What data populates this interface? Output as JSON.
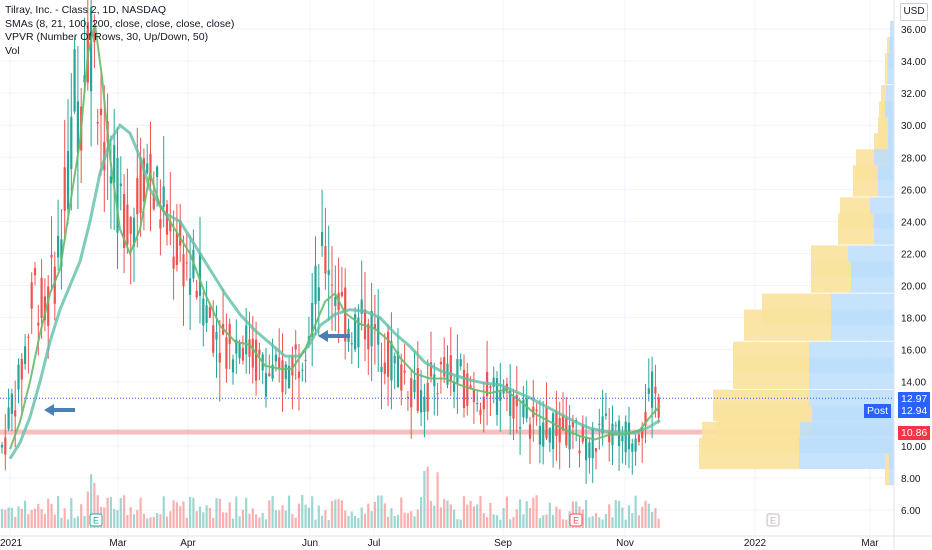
{
  "legend": {
    "title": "Tilray, Inc. - Class 2, 1D, NASDAQ",
    "sma": "SMAs (8, 21, 100, 200, close, close, close, close)",
    "vpvr": "VPVR (Number Of Rows, 30, Up/Down, 50)",
    "vol": "Vol"
  },
  "currency": "USD",
  "price_tags": {
    "last": "12.97",
    "post_label": "Post",
    "post": "12.94",
    "support": "10.86"
  },
  "colors": {
    "up": "#26a69a",
    "down": "#ef5350",
    "sma_fast": "#66bb6a",
    "sma_slow": "#5fbfa8",
    "vp_up": "#f9e29c",
    "vp_down": "#bbdefb",
    "support_line": "#f28b8b",
    "arrow": "#4a7fb5"
  },
  "chart_data": {
    "type": "candlestick",
    "y_ticks": [
      "36.00",
      "34.00",
      "32.00",
      "30.00",
      "28.00",
      "26.00",
      "24.00",
      "22.00",
      "20.00",
      "18.00",
      "16.00",
      "14.00",
      "10.00",
      "8.00",
      "6.00"
    ],
    "x_ticks": [
      "2021",
      "Mar",
      "Apr",
      "Jun",
      "Jul",
      "Sep",
      "Nov",
      "2022",
      "Mar"
    ],
    "ylim": [
      5,
      37
    ],
    "events": [
      "E",
      "E",
      "E"
    ],
    "price_path": [
      [
        0,
        9.6
      ],
      [
        5,
        10.4
      ],
      [
        12,
        12.8
      ],
      [
        18,
        13.5
      ],
      [
        25,
        16
      ],
      [
        30,
        18
      ],
      [
        35,
        20
      ],
      [
        45,
        18
      ],
      [
        55,
        21
      ],
      [
        65,
        25
      ],
      [
        70,
        28
      ],
      [
        75,
        33
      ],
      [
        80,
        30
      ],
      [
        85,
        35
      ],
      [
        90,
        36
      ],
      [
        95,
        34
      ],
      [
        100,
        32
      ],
      [
        105,
        29
      ],
      [
        110,
        27
      ],
      [
        120,
        25
      ],
      [
        130,
        24
      ],
      [
        140,
        26
      ],
      [
        145,
        28
      ],
      [
        150,
        27
      ],
      [
        155,
        26
      ],
      [
        160,
        25
      ],
      [
        170,
        23
      ],
      [
        180,
        22
      ],
      [
        190,
        21
      ],
      [
        200,
        20
      ],
      [
        210,
        18
      ],
      [
        220,
        17
      ],
      [
        230,
        16
      ],
      [
        240,
        17
      ],
      [
        250,
        16
      ],
      [
        260,
        15
      ],
      [
        270,
        14.5
      ],
      [
        280,
        14.2
      ],
      [
        290,
        15
      ],
      [
        300,
        16
      ],
      [
        305,
        17
      ],
      [
        310,
        18
      ],
      [
        320,
        21
      ],
      [
        328,
        22
      ],
      [
        335,
        20
      ],
      [
        345,
        18
      ],
      [
        355,
        17.5
      ],
      [
        365,
        18
      ],
      [
        375,
        17
      ],
      [
        385,
        16
      ],
      [
        395,
        15
      ],
      [
        405,
        14.5
      ],
      [
        415,
        13.6
      ],
      [
        425,
        13
      ],
      [
        435,
        14.3
      ],
      [
        445,
        14.6
      ],
      [
        455,
        14.1
      ],
      [
        465,
        13.8
      ],
      [
        475,
        13.5
      ],
      [
        485,
        13.2
      ],
      [
        495,
        13
      ],
      [
        505,
        13.6
      ],
      [
        515,
        12.6
      ],
      [
        525,
        12
      ],
      [
        535,
        11.5
      ],
      [
        545,
        11.2
      ],
      [
        555,
        11
      ],
      [
        565,
        10.7
      ],
      [
        575,
        10.5
      ],
      [
        585,
        10.3
      ],
      [
        595,
        10.3
      ],
      [
        605,
        11
      ],
      [
        615,
        10.6
      ],
      [
        625,
        10.5
      ],
      [
        635,
        10.8
      ],
      [
        645,
        12
      ],
      [
        652,
        13.2
      ],
      [
        658,
        13
      ]
    ],
    "sma_fast": [
      [
        10,
        9.8
      ],
      [
        20,
        11.5
      ],
      [
        30,
        14
      ],
      [
        40,
        17
      ],
      [
        50,
        19.5
      ],
      [
        60,
        21
      ],
      [
        70,
        25
      ],
      [
        80,
        29
      ],
      [
        88,
        34.5
      ],
      [
        95,
        36.3
      ],
      [
        102,
        33
      ],
      [
        110,
        28
      ],
      [
        120,
        23.5
      ],
      [
        130,
        22
      ],
      [
        140,
        23.5
      ],
      [
        150,
        27
      ],
      [
        160,
        25
      ],
      [
        175,
        23.5
      ],
      [
        190,
        22
      ],
      [
        205,
        19.5
      ],
      [
        220,
        17.5
      ],
      [
        235,
        16.5
      ],
      [
        250,
        16.3
      ],
      [
        265,
        15
      ],
      [
        280,
        14.8
      ],
      [
        292,
        14.8
      ],
      [
        305,
        16
      ],
      [
        315,
        17.5
      ],
      [
        325,
        19
      ],
      [
        335,
        19.5
      ],
      [
        345,
        18.3
      ],
      [
        360,
        17.6
      ],
      [
        375,
        17.3
      ],
      [
        390,
        16.5
      ],
      [
        400,
        15.5
      ],
      [
        415,
        14.5
      ],
      [
        430,
        14.2
      ],
      [
        445,
        14.2
      ],
      [
        460,
        13.8
      ],
      [
        475,
        13.5
      ],
      [
        490,
        13.3
      ],
      [
        505,
        13.5
      ],
      [
        520,
        12.8
      ],
      [
        535,
        12
      ],
      [
        550,
        11.5
      ],
      [
        565,
        11
      ],
      [
        580,
        10.6
      ],
      [
        595,
        10.4
      ],
      [
        610,
        10.7
      ],
      [
        625,
        10.7
      ],
      [
        640,
        11
      ],
      [
        650,
        11.8
      ],
      [
        660,
        12.5
      ]
    ],
    "sma_slow": [
      [
        10,
        9.2
      ],
      [
        20,
        10.2
      ],
      [
        30,
        11.8
      ],
      [
        40,
        14
      ],
      [
        50,
        16.5
      ],
      [
        60,
        18.5
      ],
      [
        70,
        20
      ],
      [
        80,
        21.5
      ],
      [
        90,
        24
      ],
      [
        100,
        27
      ],
      [
        110,
        29
      ],
      [
        120,
        30
      ],
      [
        130,
        29.5
      ],
      [
        140,
        28
      ],
      [
        150,
        26
      ],
      [
        165,
        24.5
      ],
      [
        180,
        24
      ],
      [
        195,
        22.5
      ],
      [
        210,
        21
      ],
      [
        225,
        19.5
      ],
      [
        240,
        18.2
      ],
      [
        255,
        17.2
      ],
      [
        270,
        16.4
      ],
      [
        285,
        15.6
      ],
      [
        300,
        15.6
      ],
      [
        310,
        16.4
      ],
      [
        320,
        17.5
      ],
      [
        335,
        18.2
      ],
      [
        350,
        18.5
      ],
      [
        365,
        18.4
      ],
      [
        380,
        18
      ],
      [
        395,
        17
      ],
      [
        410,
        16.2
      ],
      [
        425,
        15.2
      ],
      [
        440,
        14.7
      ],
      [
        455,
        14.4
      ],
      [
        470,
        14.1
      ],
      [
        485,
        13.9
      ],
      [
        500,
        13.8
      ],
      [
        515,
        13.4
      ],
      [
        530,
        13
      ],
      [
        545,
        12.5
      ],
      [
        560,
        12
      ],
      [
        575,
        11.5
      ],
      [
        590,
        11.1
      ],
      [
        605,
        10.9
      ],
      [
        620,
        10.8
      ],
      [
        635,
        10.8
      ],
      [
        650,
        11.2
      ],
      [
        660,
        11.6
      ]
    ],
    "volume_profile": [
      {
        "price": 36,
        "up": 0,
        "down": 4
      },
      {
        "price": 35,
        "up": 2,
        "down": 5
      },
      {
        "price": 34,
        "up": 3,
        "down": 6
      },
      {
        "price": 32,
        "up": 5,
        "down": 8
      },
      {
        "price": 31,
        "up": 6,
        "down": 9
      },
      {
        "price": 30,
        "up": 10,
        "down": 6
      },
      {
        "price": 29,
        "up": 14,
        "down": 6
      },
      {
        "price": 28,
        "up": 18,
        "down": 20
      },
      {
        "price": 27,
        "up": 25,
        "down": 16
      },
      {
        "price": 25,
        "up": 30,
        "down": 24
      },
      {
        "price": 24,
        "up": 36,
        "down": 20
      },
      {
        "price": 22,
        "up": 37,
        "down": 46
      },
      {
        "price": 21,
        "up": 40,
        "down": 43
      },
      {
        "price": 19,
        "up": 69,
        "down": 63
      },
      {
        "price": 18,
        "up": 87,
        "down": 63
      },
      {
        "price": 16,
        "up": 76,
        "down": 85
      },
      {
        "price": 15,
        "up": 76,
        "down": 85
      },
      {
        "price": 13,
        "up": 96,
        "down": 85
      },
      {
        "price": 12,
        "up": 96,
        "down": 82
      },
      {
        "price": 11,
        "up": 98,
        "down": 94
      },
      {
        "price": 10,
        "up": 100,
        "down": 95
      },
      {
        "price": 9,
        "up": 4,
        "down": 5
      }
    ]
  }
}
